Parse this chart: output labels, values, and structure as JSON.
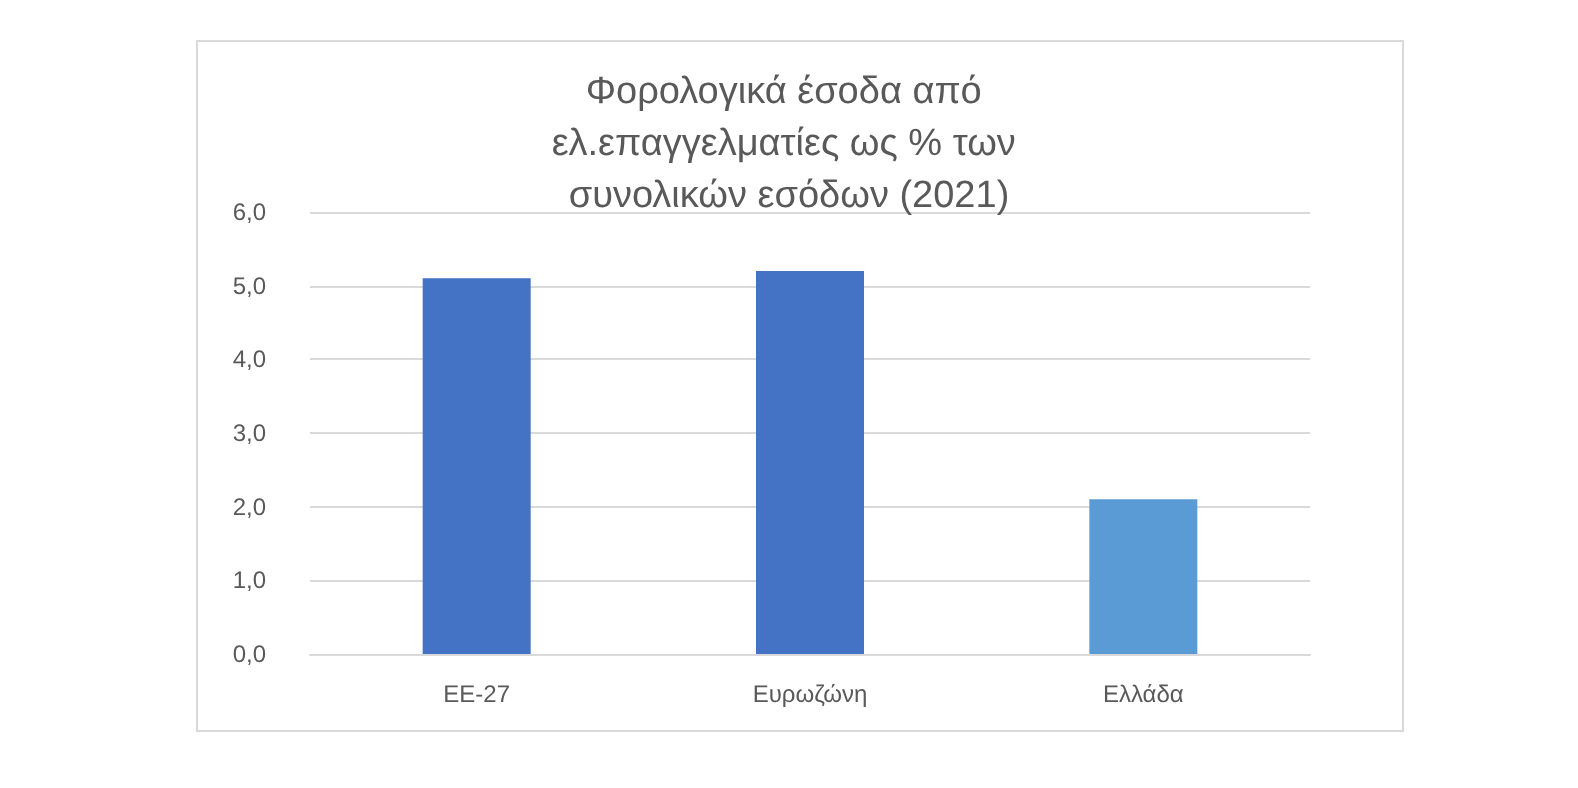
{
  "chart_data": {
    "type": "bar",
    "title": "Φορολογικά έσοδα από ελ.επαγγελματίες ως % των συνολικών εσόδων (2021)",
    "categories": [
      "ΕΕ-27",
      "Ευρωζώνη",
      "Ελλάδα"
    ],
    "values": [
      5.1,
      5.2,
      2.1
    ],
    "colors": [
      "#4472c4",
      "#4472c4",
      "#5b9bd5"
    ],
    "ylim": [
      0,
      6
    ],
    "yticks": [
      {
        "value": 0,
        "label": "0,0"
      },
      {
        "value": 1,
        "label": "1,0"
      },
      {
        "value": 2,
        "label": "2,0"
      },
      {
        "value": 3,
        "label": "3,0"
      },
      {
        "value": 4,
        "label": "4,0"
      },
      {
        "value": 5,
        "label": "5,0"
      },
      {
        "value": 6,
        "label": "6,0"
      }
    ],
    "grid": "y"
  }
}
